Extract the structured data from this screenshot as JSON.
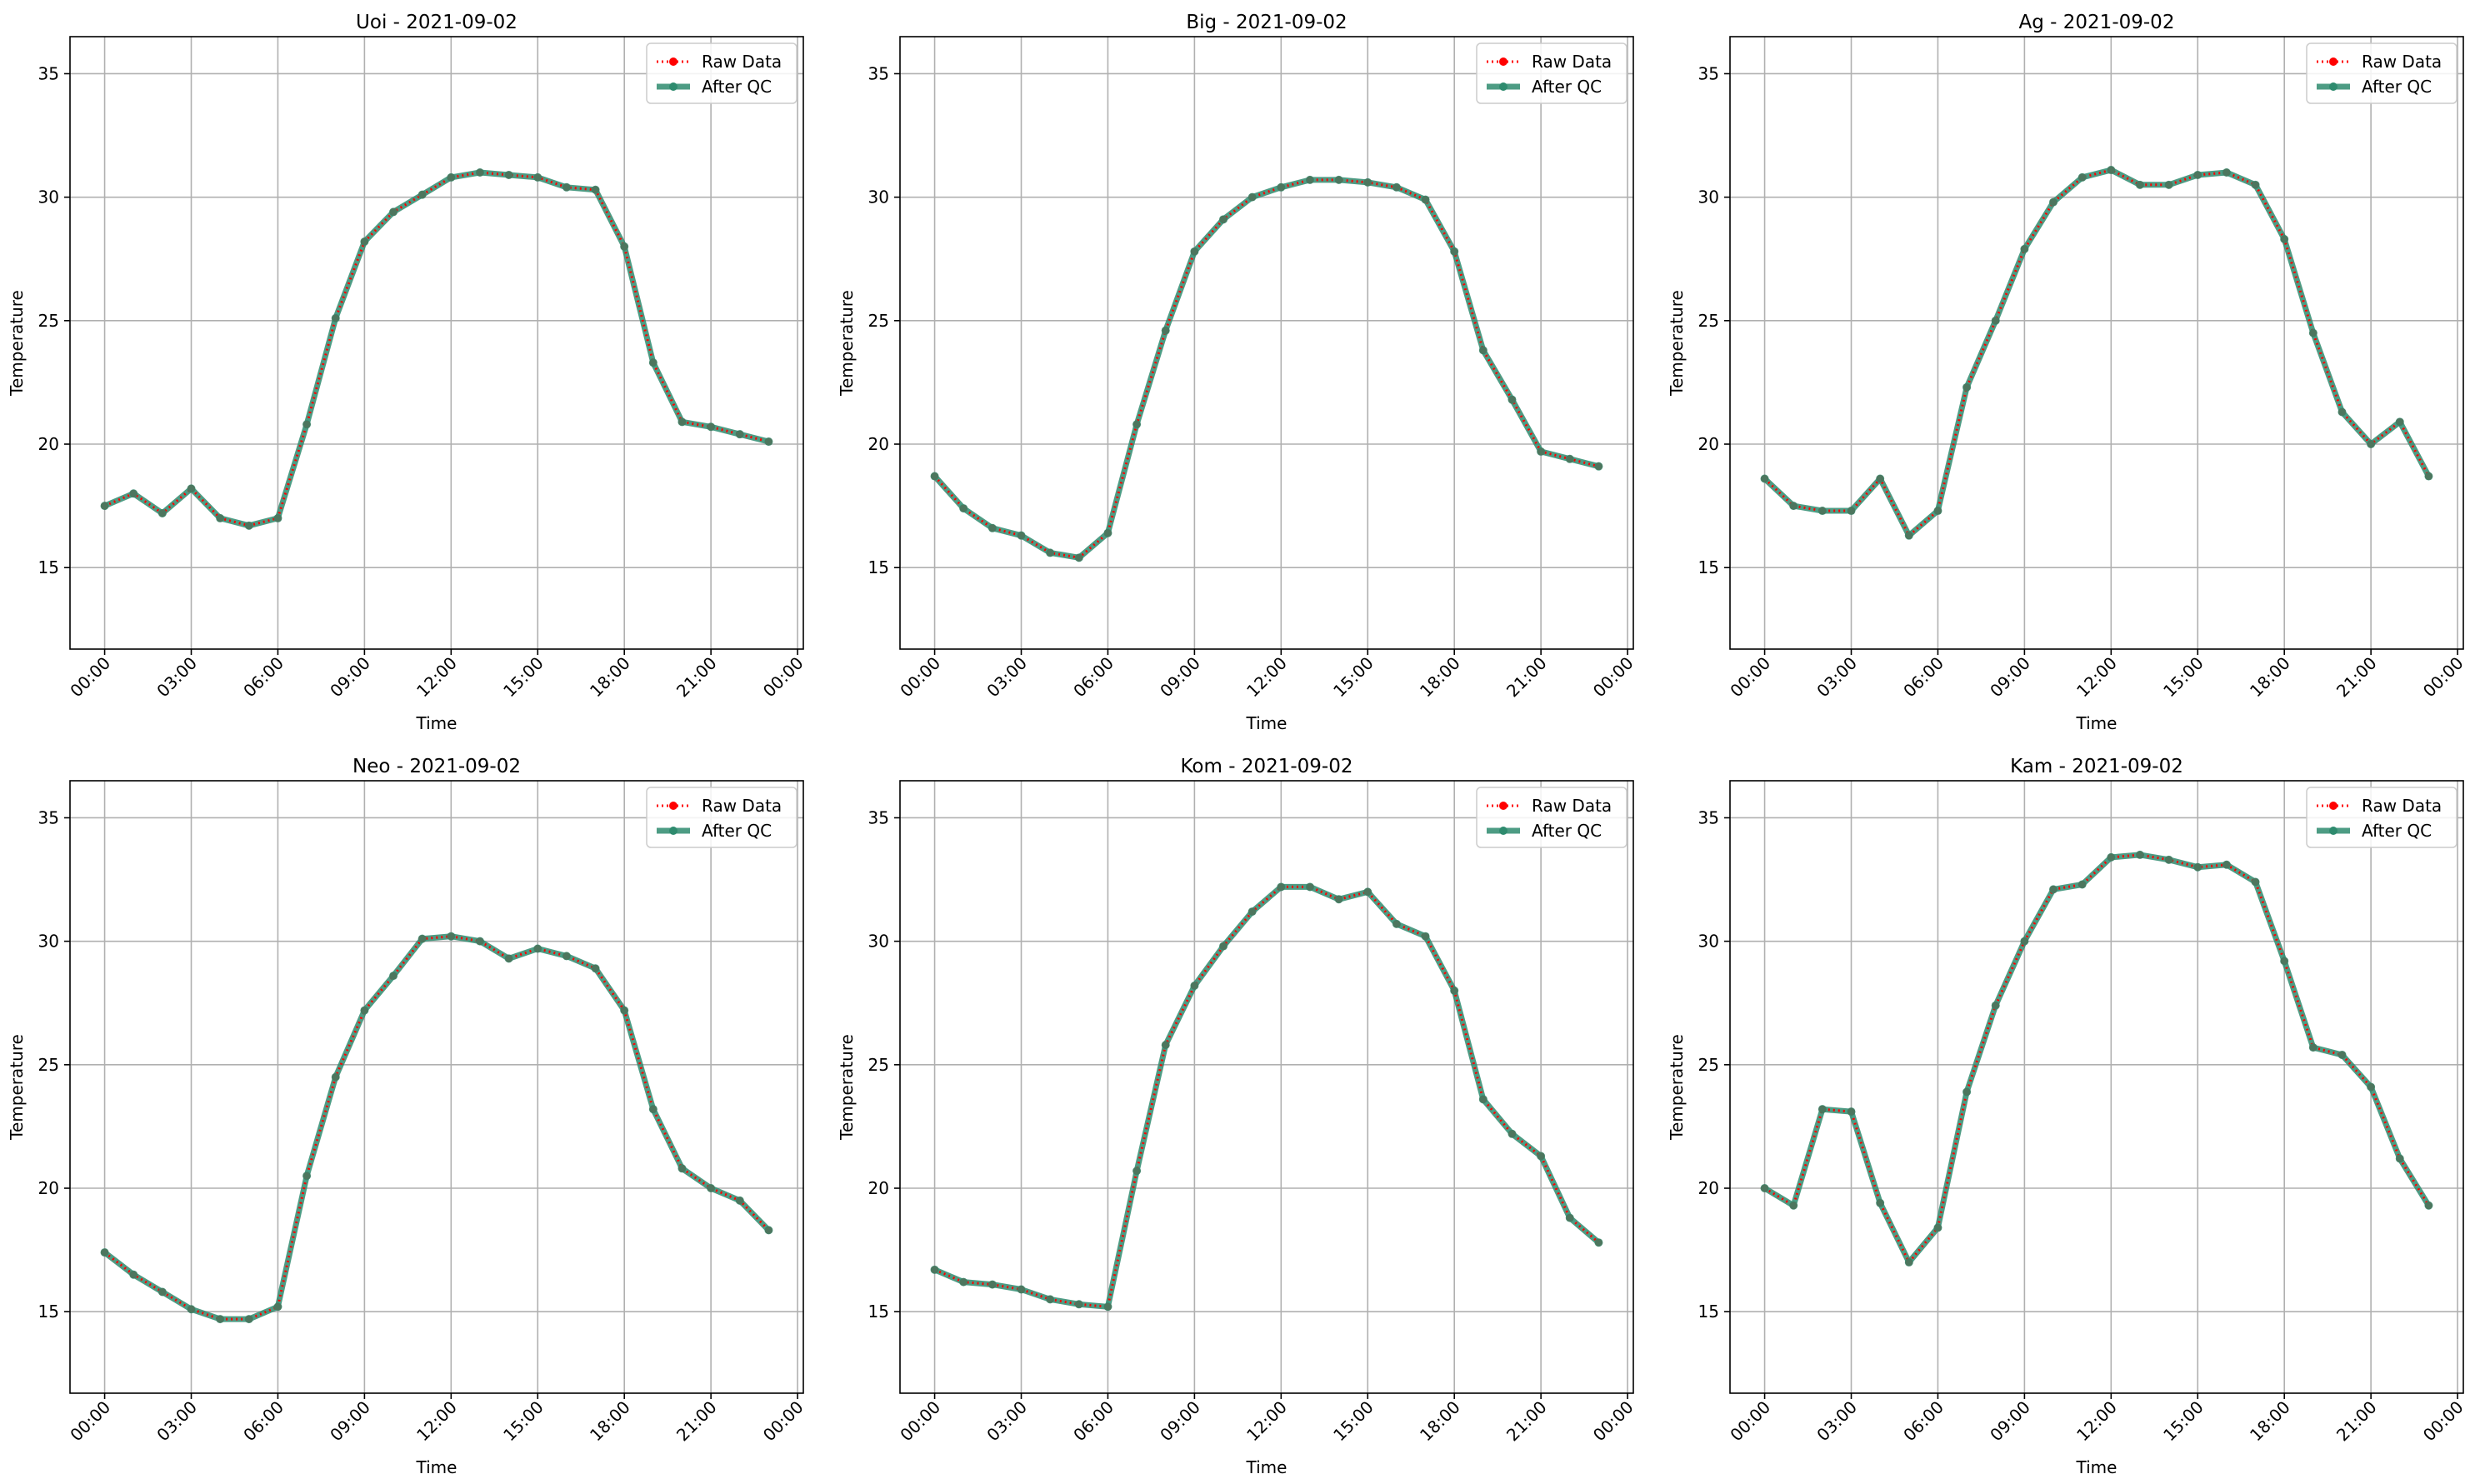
{
  "chart_data": [
    {
      "type": "line",
      "title": "Uoi - 2021-09-02",
      "xlabel": "Time",
      "ylabel": "Temperature",
      "x_ticks": [
        "00:00",
        "03:00",
        "06:00",
        "09:00",
        "12:00",
        "15:00",
        "18:00",
        "21:00",
        "00:00"
      ],
      "y_ticks": [
        15,
        20,
        25,
        30,
        35
      ],
      "xlim": [
        -1.2,
        24.2
      ],
      "ylim": [
        11.7,
        36.5
      ],
      "grid": true,
      "legend_position": "top-right",
      "x": [
        0,
        1,
        2,
        3,
        4,
        5,
        6,
        7,
        8,
        9,
        10,
        11,
        12,
        13,
        14,
        15,
        16,
        17,
        18,
        19,
        20,
        21,
        22,
        23
      ],
      "series": [
        {
          "name": "Raw Data",
          "color": "#ff0000",
          "values": [
            17.5,
            18.0,
            17.2,
            18.2,
            17.0,
            16.7,
            17.0,
            20.8,
            25.1,
            28.2,
            29.4,
            30.1,
            30.8,
            31.0,
            30.9,
            30.8,
            30.4,
            30.3,
            28.0,
            23.3,
            20.9,
            20.7,
            20.4,
            20.1
          ]
        },
        {
          "name": "After QC",
          "color": "#2e8b6e",
          "values": [
            17.5,
            18.0,
            17.2,
            18.2,
            17.0,
            16.7,
            17.0,
            20.8,
            25.1,
            28.2,
            29.4,
            30.1,
            30.8,
            31.0,
            30.9,
            30.8,
            30.4,
            30.3,
            28.0,
            23.3,
            20.9,
            20.7,
            20.4,
            20.1
          ]
        }
      ]
    },
    {
      "type": "line",
      "title": "Big - 2021-09-02",
      "xlabel": "Time",
      "ylabel": "Temperature",
      "x_ticks": [
        "00:00",
        "03:00",
        "06:00",
        "09:00",
        "12:00",
        "15:00",
        "18:00",
        "21:00",
        "00:00"
      ],
      "y_ticks": [
        15,
        20,
        25,
        30,
        35
      ],
      "xlim": [
        -1.2,
        24.2
      ],
      "ylim": [
        11.7,
        36.5
      ],
      "grid": true,
      "legend_position": "top-right",
      "x": [
        0,
        1,
        2,
        3,
        4,
        5,
        6,
        7,
        8,
        9,
        10,
        11,
        12,
        13,
        14,
        15,
        16,
        17,
        18,
        19,
        20,
        21,
        22,
        23
      ],
      "series": [
        {
          "name": "Raw Data",
          "color": "#ff0000",
          "values": [
            18.7,
            17.4,
            16.6,
            16.3,
            15.6,
            15.4,
            16.4,
            20.8,
            24.6,
            27.8,
            29.1,
            30.0,
            30.4,
            30.7,
            30.7,
            30.6,
            30.4,
            29.9,
            27.8,
            23.8,
            21.8,
            19.7,
            19.4,
            19.1
          ]
        },
        {
          "name": "After QC",
          "color": "#2e8b6e",
          "values": [
            18.7,
            17.4,
            16.6,
            16.3,
            15.6,
            15.4,
            16.4,
            20.8,
            24.6,
            27.8,
            29.1,
            30.0,
            30.4,
            30.7,
            30.7,
            30.6,
            30.4,
            29.9,
            27.8,
            23.8,
            21.8,
            19.7,
            19.4,
            19.1
          ]
        }
      ]
    },
    {
      "type": "line",
      "title": "Ag - 2021-09-02",
      "xlabel": "Time",
      "ylabel": "Temperature",
      "x_ticks": [
        "00:00",
        "03:00",
        "06:00",
        "09:00",
        "12:00",
        "15:00",
        "18:00",
        "21:00",
        "00:00"
      ],
      "y_ticks": [
        15,
        20,
        25,
        30,
        35
      ],
      "xlim": [
        -1.2,
        24.2
      ],
      "ylim": [
        11.7,
        36.5
      ],
      "grid": true,
      "legend_position": "top-right",
      "x": [
        0,
        1,
        2,
        3,
        4,
        5,
        6,
        7,
        8,
        9,
        10,
        11,
        12,
        13,
        14,
        15,
        16,
        17,
        18,
        19,
        20,
        21,
        22,
        23
      ],
      "series": [
        {
          "name": "Raw Data",
          "color": "#ff0000",
          "values": [
            18.6,
            17.5,
            17.3,
            17.3,
            18.6,
            16.3,
            17.3,
            22.3,
            25.0,
            27.9,
            29.8,
            30.8,
            31.1,
            30.5,
            30.5,
            30.9,
            31.0,
            30.5,
            28.3,
            24.5,
            21.3,
            20.0,
            20.9,
            18.7
          ]
        },
        {
          "name": "After QC",
          "color": "#2e8b6e",
          "values": [
            18.6,
            17.5,
            17.3,
            17.3,
            18.6,
            16.3,
            17.3,
            22.3,
            25.0,
            27.9,
            29.8,
            30.8,
            31.1,
            30.5,
            30.5,
            30.9,
            31.0,
            30.5,
            28.3,
            24.5,
            21.3,
            20.0,
            20.9,
            18.7
          ]
        }
      ]
    },
    {
      "type": "line",
      "title": "Neo - 2021-09-02",
      "xlabel": "Time",
      "ylabel": "Temperature",
      "x_ticks": [
        "00:00",
        "03:00",
        "06:00",
        "09:00",
        "12:00",
        "15:00",
        "18:00",
        "21:00",
        "00:00"
      ],
      "y_ticks": [
        15,
        20,
        25,
        30,
        35
      ],
      "xlim": [
        -1.2,
        24.2
      ],
      "ylim": [
        11.7,
        36.5
      ],
      "grid": true,
      "legend_position": "top-right",
      "x": [
        0,
        1,
        2,
        3,
        4,
        5,
        6,
        7,
        8,
        9,
        10,
        11,
        12,
        13,
        14,
        15,
        16,
        17,
        18,
        19,
        20,
        21,
        22,
        23
      ],
      "series": [
        {
          "name": "Raw Data",
          "color": "#ff0000",
          "values": [
            17.4,
            16.5,
            15.8,
            15.1,
            14.7,
            14.7,
            15.2,
            20.5,
            24.5,
            27.2,
            28.6,
            30.1,
            30.2,
            30.0,
            29.3,
            29.7,
            29.4,
            28.9,
            27.2,
            23.2,
            20.8,
            20.0,
            19.5,
            18.3
          ]
        },
        {
          "name": "After QC",
          "color": "#2e8b6e",
          "values": [
            17.4,
            16.5,
            15.8,
            15.1,
            14.7,
            14.7,
            15.2,
            20.5,
            24.5,
            27.2,
            28.6,
            30.1,
            30.2,
            30.0,
            29.3,
            29.7,
            29.4,
            28.9,
            27.2,
            23.2,
            20.8,
            20.0,
            19.5,
            18.3
          ]
        }
      ]
    },
    {
      "type": "line",
      "title": "Kom - 2021-09-02",
      "xlabel": "Time",
      "ylabel": "Temperature",
      "x_ticks": [
        "00:00",
        "03:00",
        "06:00",
        "09:00",
        "12:00",
        "15:00",
        "18:00",
        "21:00",
        "00:00"
      ],
      "y_ticks": [
        15,
        20,
        25,
        30,
        35
      ],
      "xlim": [
        -1.2,
        24.2
      ],
      "ylim": [
        11.7,
        36.5
      ],
      "grid": true,
      "legend_position": "top-right",
      "x": [
        0,
        1,
        2,
        3,
        4,
        5,
        6,
        7,
        8,
        9,
        10,
        11,
        12,
        13,
        14,
        15,
        16,
        17,
        18,
        19,
        20,
        21,
        22,
        23
      ],
      "series": [
        {
          "name": "Raw Data",
          "color": "#ff0000",
          "values": [
            16.7,
            16.2,
            16.1,
            15.9,
            15.5,
            15.3,
            15.2,
            20.7,
            25.8,
            28.2,
            29.8,
            31.2,
            32.2,
            32.2,
            31.7,
            32.0,
            30.7,
            30.2,
            28.0,
            23.6,
            22.2,
            21.3,
            18.8,
            17.8
          ]
        },
        {
          "name": "After QC",
          "color": "#2e8b6e",
          "values": [
            16.7,
            16.2,
            16.1,
            15.9,
            15.5,
            15.3,
            15.2,
            20.7,
            25.8,
            28.2,
            29.8,
            31.2,
            32.2,
            32.2,
            31.7,
            32.0,
            30.7,
            30.2,
            28.0,
            23.6,
            22.2,
            21.3,
            18.8,
            17.8
          ]
        }
      ]
    },
    {
      "type": "line",
      "title": "Kam - 2021-09-02",
      "xlabel": "Time",
      "ylabel": "Temperature",
      "x_ticks": [
        "00:00",
        "03:00",
        "06:00",
        "09:00",
        "12:00",
        "15:00",
        "18:00",
        "21:00",
        "00:00"
      ],
      "y_ticks": [
        15,
        20,
        25,
        30,
        35
      ],
      "xlim": [
        -1.2,
        24.2
      ],
      "ylim": [
        11.7,
        36.5
      ],
      "grid": true,
      "legend_position": "top-right",
      "x": [
        0,
        1,
        2,
        3,
        4,
        5,
        6,
        7,
        8,
        9,
        10,
        11,
        12,
        13,
        14,
        15,
        16,
        17,
        18,
        19,
        20,
        21,
        22,
        23
      ],
      "series": [
        {
          "name": "Raw Data",
          "color": "#ff0000",
          "values": [
            20.0,
            19.3,
            23.2,
            23.1,
            19.4,
            17.0,
            18.4,
            23.9,
            27.4,
            30.0,
            32.1,
            32.3,
            33.4,
            33.5,
            33.3,
            33.0,
            33.1,
            32.4,
            29.2,
            25.7,
            25.4,
            24.1,
            21.2,
            19.3
          ]
        },
        {
          "name": "After QC",
          "color": "#2e8b6e",
          "values": [
            20.0,
            19.3,
            23.2,
            23.1,
            19.4,
            17.0,
            18.4,
            23.9,
            27.4,
            30.0,
            32.1,
            32.3,
            33.4,
            33.5,
            33.3,
            33.0,
            33.1,
            32.4,
            29.2,
            25.7,
            25.4,
            24.1,
            21.2,
            19.3
          ]
        }
      ]
    }
  ]
}
